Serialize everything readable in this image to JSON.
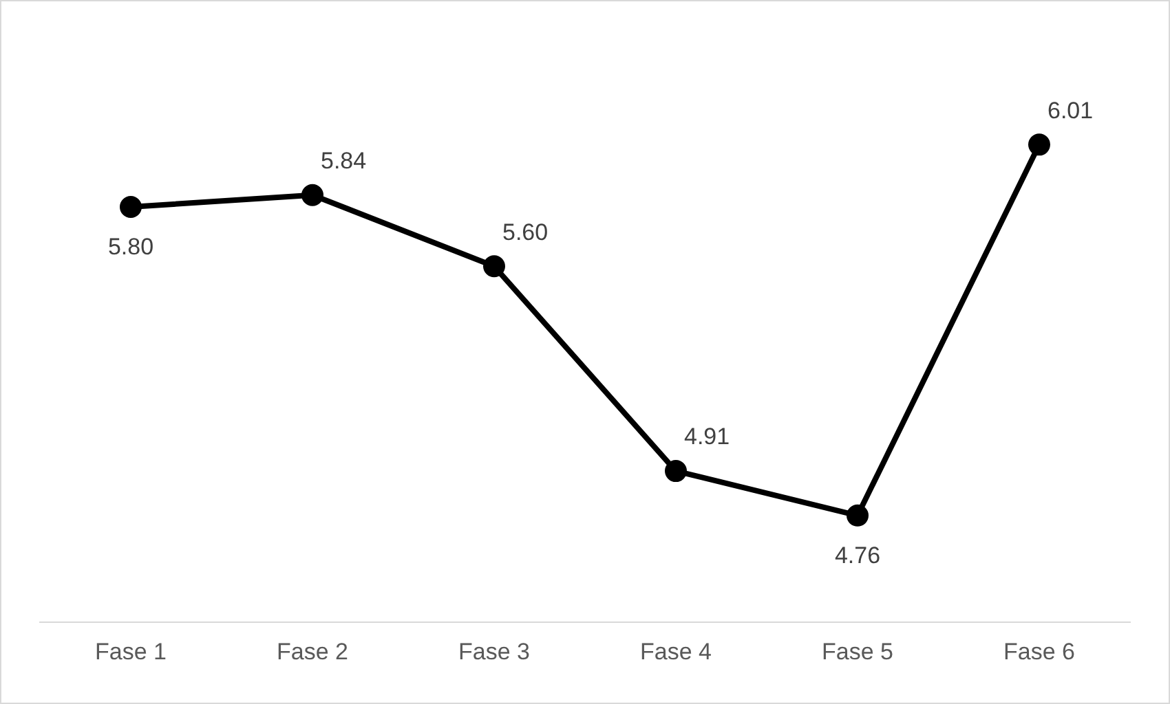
{
  "chart_data": {
    "type": "line",
    "categories": [
      "Fase 1",
      "Fase 2",
      "Fase 3",
      "Fase 4",
      "Fase 5",
      "Fase 6"
    ],
    "values": [
      5.8,
      5.84,
      5.6,
      4.91,
      4.76,
      6.01
    ],
    "color": "#000000",
    "marker": "circle",
    "line_style": "solid",
    "value_labels": [
      "5.80",
      "5.84",
      "5.60",
      "4.91",
      "4.76",
      "6.01"
    ],
    "tick_labels": "x",
    "grid": false,
    "legend": false
  }
}
